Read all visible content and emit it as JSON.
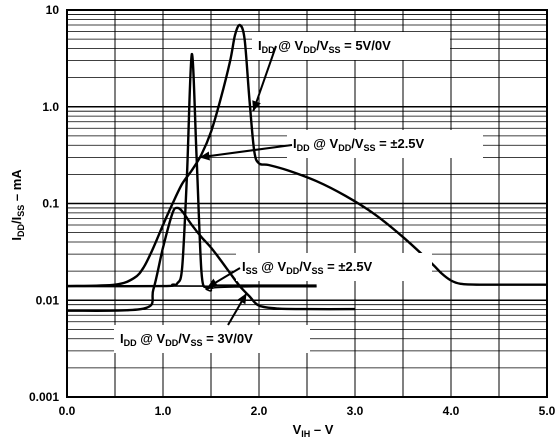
{
  "chart_data": {
    "type": "line",
    "xlabel": "V",
    "xlabel_sub": "IH",
    "xlabel_suffix": " – V",
    "ylabel_parts": {
      "a": "I",
      "a_sub": "DD",
      "b": "/I",
      "b_sub": "SS",
      "c": " – mA"
    },
    "xlim": [
      0,
      5
    ],
    "ylim": [
      0.001,
      10
    ],
    "y_scale": "log",
    "grid": true,
    "x_ticks": [
      "0.0",
      "1.0",
      "2.0",
      "3.0",
      "4.0",
      "5.0"
    ],
    "x_tick_values": [
      0,
      1,
      2,
      3,
      4,
      5
    ],
    "y_ticks": [
      "0.001",
      "0.01",
      "0.1",
      "1.0",
      "10"
    ],
    "y_tick_values": [
      0.001,
      0.01,
      0.1,
      1,
      10
    ],
    "series": [
      {
        "name": "IDD @ VDD/VSS = 5V/0V",
        "x": [
          0,
          0.5,
          0.7,
          0.8,
          0.9,
          1.0,
          1.1,
          1.2,
          1.3,
          1.4,
          1.5,
          1.6,
          1.7,
          1.75,
          1.8,
          1.85,
          1.9,
          1.95,
          2.0,
          2.1,
          2.3,
          2.6,
          2.9,
          3.2,
          3.5,
          3.8,
          3.9,
          4.0,
          4.1,
          4.3,
          5.0
        ],
        "y": [
          0.014,
          0.0145,
          0.017,
          0.022,
          0.035,
          0.06,
          0.1,
          0.16,
          0.22,
          0.32,
          0.55,
          1.2,
          3.0,
          5.5,
          7.0,
          5.0,
          1.2,
          0.35,
          0.26,
          0.25,
          0.22,
          0.17,
          0.12,
          0.078,
          0.045,
          0.024,
          0.019,
          0.016,
          0.0148,
          0.0145,
          0.0145
        ]
      },
      {
        "name": "IDD @ VDD/VSS = ±2.5V",
        "x": [
          0,
          1.0,
          1.1,
          1.15,
          1.2,
          1.25,
          1.3,
          1.35,
          1.4,
          1.45,
          1.5,
          1.55,
          1.6,
          2.0,
          2.6
        ],
        "y": [
          0.014,
          0.014,
          0.0145,
          0.015,
          0.022,
          0.2,
          3.5,
          0.3,
          0.02,
          0.0135,
          0.014,
          0.0142,
          0.0142,
          0.0142,
          0.0142
        ]
      },
      {
        "name": "ISS @ VDD/VSS = ±2.5V",
        "x": [
          0,
          1.4,
          1.45,
          1.5,
          1.55,
          2.0,
          2.6
        ],
        "y": [
          0.014,
          0.014,
          0.013,
          0.0125,
          0.0135,
          0.0138,
          0.0138
        ]
      },
      {
        "name": "IDD @ VDD/VSS = 3V/0V",
        "x": [
          0,
          0.8,
          0.9,
          1.0,
          1.1,
          1.15,
          1.2,
          1.3,
          1.4,
          1.5,
          1.6,
          1.7,
          1.8,
          1.9,
          2.0,
          2.2,
          2.5,
          3.0
        ],
        "y": [
          0.0078,
          0.0082,
          0.013,
          0.035,
          0.08,
          0.09,
          0.083,
          0.06,
          0.045,
          0.035,
          0.026,
          0.019,
          0.014,
          0.011,
          0.0088,
          0.0082,
          0.0081,
          0.0081
        ]
      }
    ],
    "annotations": [
      {
        "main": "I",
        "sub": "DD",
        "rest": " @ V",
        "sub2": "DD",
        "rest2": "/V",
        "sub3": "SS",
        "tail": " = 5V/0V",
        "series": 0
      },
      {
        "main": "I",
        "sub": "DD",
        "rest": " @ V",
        "sub2": "DD",
        "rest2": "/V",
        "sub3": "SS",
        "tail": " = ±2.5V",
        "series": 1
      },
      {
        "main": "I",
        "sub": "SS",
        "rest": " @ V",
        "sub2": "DD",
        "rest2": "/V",
        "sub3": "SS",
        "tail": " = ±2.5V",
        "series": 2
      },
      {
        "main": "I",
        "sub": "DD",
        "rest": " @ V",
        "sub2": "DD",
        "rest2": "/V",
        "sub3": "SS",
        "tail": " = 3V/0V",
        "series": 3
      }
    ]
  }
}
